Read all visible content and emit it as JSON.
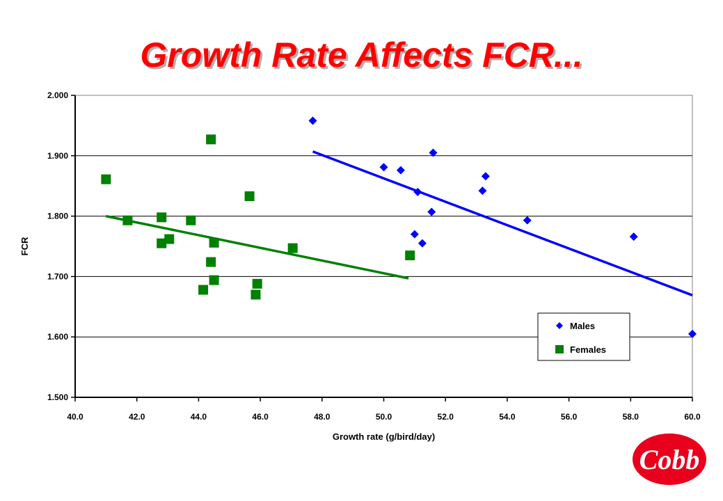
{
  "chart_data": {
    "type": "scatter",
    "title": "Growth Rate Affects FCR...",
    "xlabel": "Growth rate (g/bird/day)",
    "ylabel": "FCR",
    "xlim": [
      40.0,
      60.0
    ],
    "ylim": [
      1.5,
      2.0
    ],
    "x_ticks": [
      "40.0",
      "42.0",
      "44.0",
      "46.0",
      "48.0",
      "50.0",
      "52.0",
      "54.0",
      "56.0",
      "58.0",
      "60.0"
    ],
    "y_ticks": [
      "1.500",
      "1.600",
      "1.700",
      "1.800",
      "1.900",
      "2.000"
    ],
    "grid": "horizontal",
    "legend_position": "bottom-right",
    "series": [
      {
        "name": "Males",
        "marker": "diamond",
        "color": "#0000ff",
        "points": [
          [
            47.7,
            1.958
          ],
          [
            50.0,
            1.881
          ],
          [
            50.55,
            1.876
          ],
          [
            51.6,
            1.905
          ],
          [
            51.1,
            1.84
          ],
          [
            51.55,
            1.807
          ],
          [
            51.0,
            1.77
          ],
          [
            51.25,
            1.755
          ],
          [
            53.2,
            1.842
          ],
          [
            53.3,
            1.866
          ],
          [
            54.65,
            1.793
          ],
          [
            58.1,
            1.766
          ],
          [
            60.0,
            1.605
          ]
        ],
        "trendline": [
          [
            47.7,
            1.907
          ],
          [
            60.0,
            1.669
          ]
        ]
      },
      {
        "name": "Females",
        "marker": "square",
        "color": "#008000",
        "points": [
          [
            41.0,
            1.861
          ],
          [
            41.7,
            1.793
          ],
          [
            42.8,
            1.798
          ],
          [
            42.8,
            1.755
          ],
          [
            43.05,
            1.762
          ],
          [
            43.75,
            1.793
          ],
          [
            44.4,
            1.927
          ],
          [
            44.5,
            1.756
          ],
          [
            44.4,
            1.724
          ],
          [
            44.5,
            1.694
          ],
          [
            44.15,
            1.678
          ],
          [
            45.65,
            1.833
          ],
          [
            45.9,
            1.688
          ],
          [
            45.85,
            1.67
          ],
          [
            47.05,
            1.747
          ],
          [
            50.85,
            1.735
          ]
        ],
        "trendline": [
          [
            41.0,
            1.8
          ],
          [
            50.8,
            1.697
          ]
        ]
      }
    ]
  },
  "logo": {
    "text": "Cobb"
  },
  "colors": {
    "title": "#ff0000",
    "logo": "#e8001c"
  }
}
